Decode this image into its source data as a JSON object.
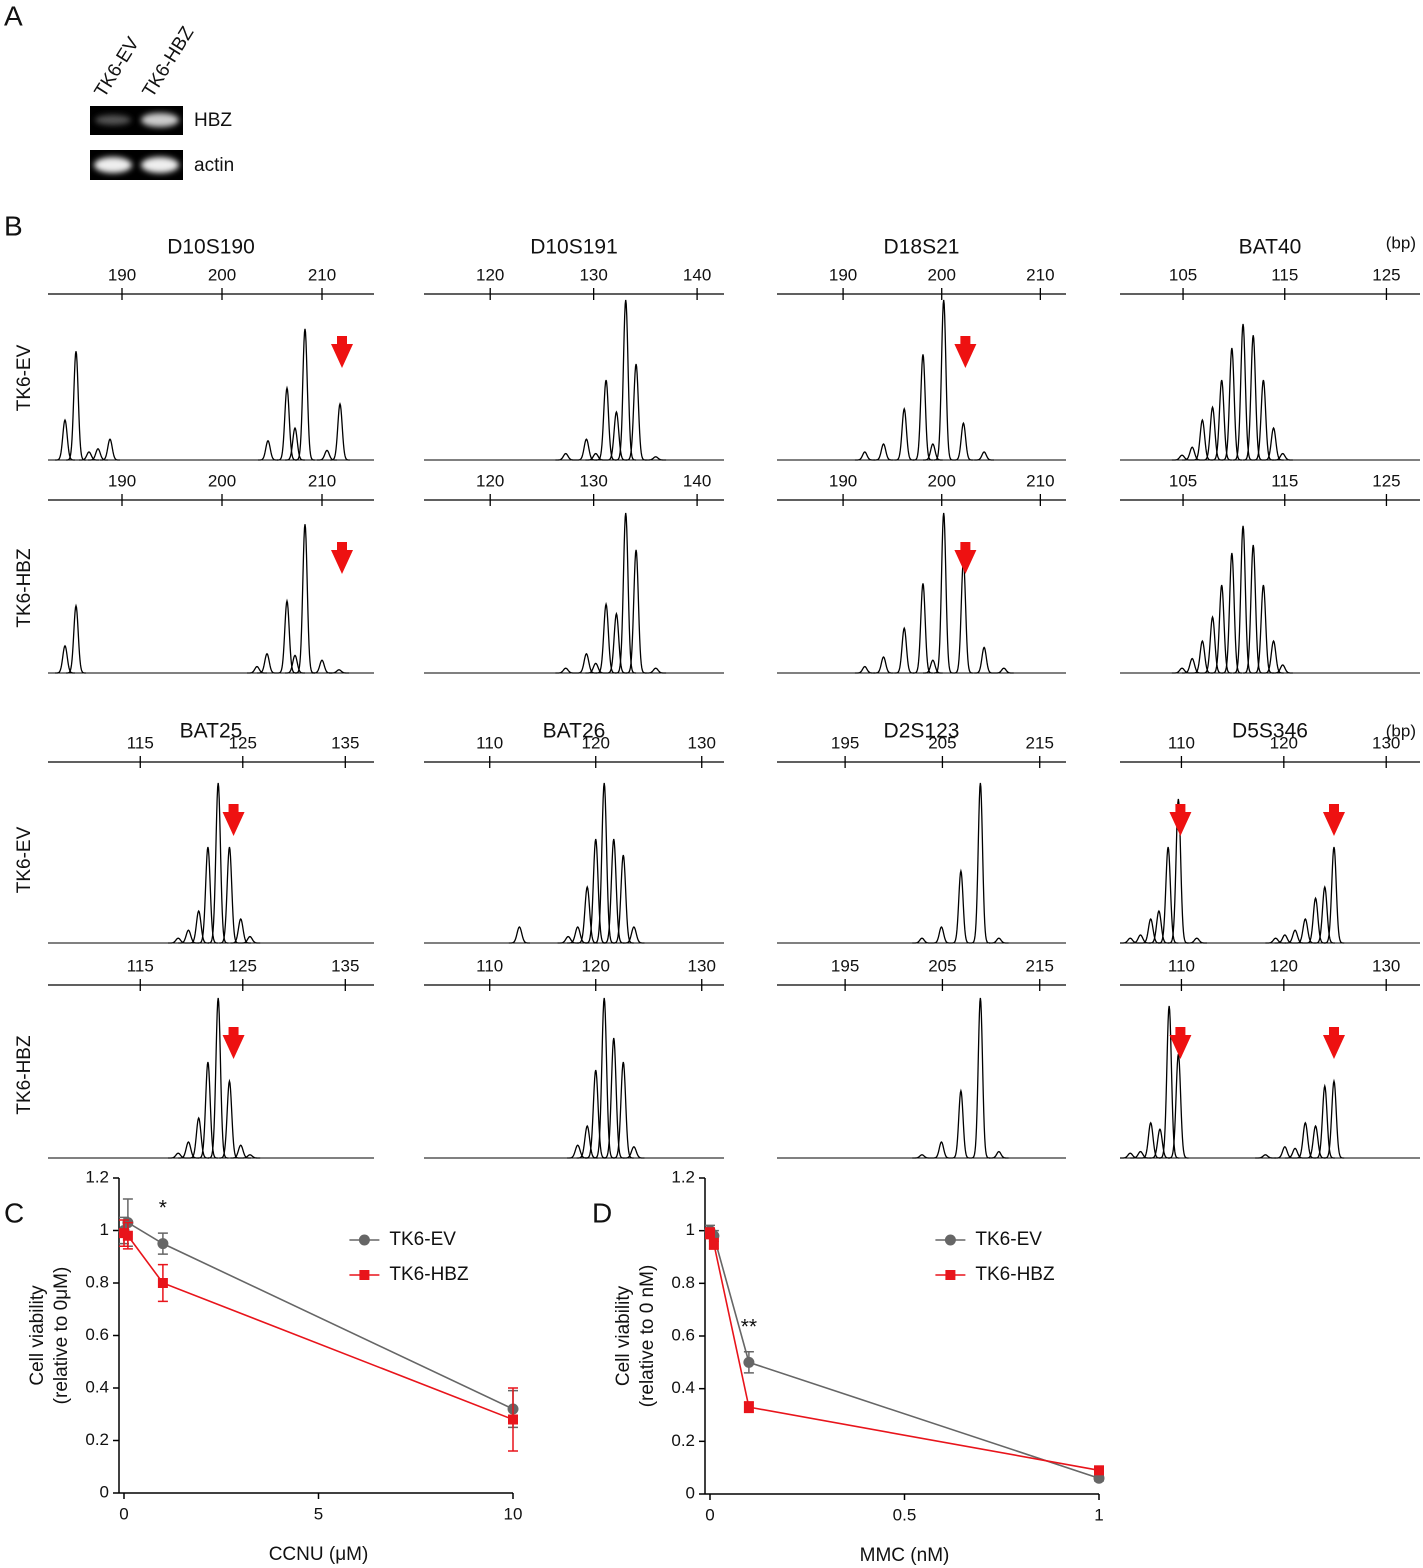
{
  "panel_labels": [
    "A",
    "B",
    "C",
    "D"
  ],
  "gel": {
    "lanes": [
      "TK6-EV",
      "TK6-HBZ"
    ],
    "bands": [
      "HBZ",
      "actin"
    ]
  },
  "fragment_analysis": {
    "unit": "(bp)",
    "rows": [
      "TK6-EV",
      "TK6-HBZ"
    ],
    "markers": [
      {
        "title": "D10S190",
        "xlim": [
          182.6,
          215.2
        ],
        "xticks": [
          190,
          200,
          210
        ],
        "traces": [
          {
            "peak_bp": [
              184.3,
              185.4,
              186.7,
              187.6,
              188.8,
              204.6,
              206.5,
              207.3,
              208.3,
              210.5,
              211.8
            ],
            "peak_height": [
              0.25,
              0.68,
              0.05,
              0.07,
              0.13,
              0.12,
              0.45,
              0.2,
              0.82,
              0.06,
              0.35
            ]
          },
          {
            "peak_bp": [
              184.3,
              185.4,
              203.5,
              204.5,
              206.5,
              207.3,
              208.3,
              210.0,
              211.7
            ],
            "peak_height": [
              0.17,
              0.42,
              0.04,
              0.12,
              0.45,
              0.11,
              0.93,
              0.08,
              0.02
            ]
          }
        ],
        "arrows": [
          [
            212.0
          ],
          [
            212.0
          ]
        ]
      },
      {
        "title": "D10S191",
        "xlim": [
          113.6,
          142.6
        ],
        "xticks": [
          120,
          130,
          140
        ],
        "traces": [
          {
            "peak_bp": [
              127.3,
              129.3,
              130.2,
              131.2,
              132.2,
              133.1,
              134.1,
              136.0
            ],
            "peak_height": [
              0.04,
              0.13,
              0.04,
              0.5,
              0.3,
              1.0,
              0.6,
              0.02
            ]
          },
          {
            "peak_bp": [
              127.3,
              129.3,
              130.2,
              131.2,
              132.2,
              133.1,
              134.1,
              136.0
            ],
            "peak_height": [
              0.03,
              0.12,
              0.06,
              0.43,
              0.37,
              1.0,
              0.77,
              0.03
            ]
          }
        ],
        "arrows": [
          [],
          []
        ]
      },
      {
        "title": "D18S21",
        "xlim": [
          183.3,
          212.6
        ],
        "xticks": [
          190,
          200,
          210
        ],
        "traces": [
          {
            "peak_bp": [
              192.2,
              194.1,
              196.2,
              198.1,
              199.1,
              200.2,
              202.2,
              204.3
            ],
            "peak_height": [
              0.05,
              0.1,
              0.32,
              0.66,
              0.1,
              1.0,
              0.23,
              0.05
            ]
          },
          {
            "peak_bp": [
              192.2,
              194.1,
              196.2,
              198.1,
              199.1,
              200.2,
              202.2,
              204.3,
              206.3
            ],
            "peak_height": [
              0.04,
              0.1,
              0.28,
              0.56,
              0.08,
              1.0,
              0.7,
              0.16,
              0.03
            ]
          }
        ],
        "arrows": [
          [
            202.4
          ],
          [
            202.4
          ]
        ]
      },
      {
        "title": "BAT40",
        "xlim": [
          98.8,
          128.3
        ],
        "xticks": [
          105,
          115,
          125
        ],
        "traces": [
          {
            "peak_bp": [
              104.9,
              105.9,
              106.9,
              107.9,
              108.8,
              109.8,
              110.9,
              111.9,
              112.9,
              113.9,
              114.8
            ],
            "peak_height": [
              0.03,
              0.08,
              0.25,
              0.33,
              0.5,
              0.7,
              0.85,
              0.78,
              0.5,
              0.2,
              0.04
            ]
          },
          {
            "peak_bp": [
              104.9,
              105.9,
              106.9,
              107.9,
              108.8,
              109.8,
              110.9,
              111.9,
              112.9,
              113.9,
              114.8
            ],
            "peak_height": [
              0.03,
              0.09,
              0.2,
              0.35,
              0.55,
              0.75,
              0.92,
              0.8,
              0.55,
              0.2,
              0.05
            ]
          }
        ],
        "arrows": [
          [],
          []
        ]
      },
      {
        "title": "BAT25",
        "xlim": [
          106.0,
          137.8
        ],
        "xticks": [
          115,
          125,
          135
        ],
        "traces": [
          {
            "peak_bp": [
              118.7,
              119.7,
              120.7,
              121.6,
              122.6,
              123.7,
              124.8,
              125.7
            ],
            "peak_height": [
              0.03,
              0.08,
              0.2,
              0.6,
              1.0,
              0.6,
              0.15,
              0.04
            ]
          },
          {
            "peak_bp": [
              118.7,
              119.7,
              120.7,
              121.6,
              122.6,
              123.7,
              124.8,
              125.7
            ],
            "peak_height": [
              0.03,
              0.1,
              0.25,
              0.6,
              1.0,
              0.48,
              0.08,
              0.02
            ]
          }
        ],
        "arrows": [
          [
            124.1
          ],
          [
            124.1
          ]
        ]
      },
      {
        "title": "BAT26",
        "xlim": [
          103.8,
          132.1
        ],
        "xticks": [
          110,
          120,
          130
        ],
        "traces": [
          {
            "peak_bp": [
              112.8,
              117.4,
              118.3,
              119.2,
              120.0,
              120.8,
              121.7,
              122.6,
              123.6
            ],
            "peak_height": [
              0.1,
              0.04,
              0.1,
              0.35,
              0.65,
              1.0,
              0.65,
              0.55,
              0.1
            ]
          },
          {
            "peak_bp": [
              118.3,
              119.2,
              120.0,
              120.8,
              121.7,
              122.6,
              123.6
            ],
            "peak_height": [
              0.08,
              0.2,
              0.55,
              1.0,
              0.75,
              0.6,
              0.07
            ]
          }
        ],
        "arrows": [
          [],
          []
        ]
      },
      {
        "title": "D2S123",
        "xlim": [
          188.0,
          217.7
        ],
        "xticks": [
          195,
          205,
          215
        ],
        "traces": [
          {
            "peak_bp": [
              202.9,
              204.9,
              206.9,
              208.9,
              210.8
            ],
            "peak_height": [
              0.03,
              0.1,
              0.45,
              1.0,
              0.03
            ]
          },
          {
            "peak_bp": [
              202.9,
              204.9,
              206.9,
              208.9,
              210.8
            ],
            "peak_height": [
              0.02,
              0.1,
              0.42,
              1.0,
              0.04
            ]
          }
        ],
        "arrows": [
          [],
          []
        ]
      },
      {
        "title": "D5S346",
        "xlim": [
          104.0,
          133.3
        ],
        "xticks": [
          110,
          120,
          130
        ],
        "traces": [
          {
            "peak_bp": [
              105.0,
              106.0,
              107.0,
              107.8,
              108.7,
              109.7,
              111.5,
              119.2,
              120.1,
              121.1,
              122.1,
              123.1,
              124.0,
              124.9
            ],
            "peak_height": [
              0.03,
              0.05,
              0.15,
              0.2,
              0.6,
              0.9,
              0.03,
              0.03,
              0.05,
              0.08,
              0.15,
              0.28,
              0.35,
              0.6
            ]
          },
          {
            "peak_bp": [
              105.0,
              106.0,
              107.0,
              107.9,
              108.8,
              109.7,
              118.2,
              120.1,
              121.1,
              122.1,
              123.1,
              124.0,
              124.9
            ],
            "peak_height": [
              0.03,
              0.04,
              0.22,
              0.18,
              0.95,
              0.65,
              0.02,
              0.07,
              0.06,
              0.22,
              0.2,
              0.45,
              0.48
            ]
          }
        ],
        "arrows": [
          [
            109.9,
            124.9
          ],
          [
            109.9,
            124.9
          ]
        ]
      }
    ]
  },
  "chart_data": [
    {
      "type": "line",
      "xlabel": "CCNU (μM)",
      "ylabel": [
        "Cell viability",
        "(relative to 0μM)"
      ],
      "x": [
        0,
        0.1,
        1,
        10
      ],
      "xlim": [
        0,
        10
      ],
      "xticks": [
        0,
        5,
        10
      ],
      "ylim": [
        0,
        1.2
      ],
      "yticks": [
        0,
        0.2,
        0.4,
        0.6,
        0.8,
        1,
        1.2
      ],
      "legend": "top-right",
      "series": [
        {
          "name": "TK6-EV",
          "color": "#666666",
          "marker": "circle",
          "values": [
            1.0,
            1.03,
            0.95,
            0.32
          ],
          "errors": [
            0.05,
            0.09,
            0.04,
            0.07
          ]
        },
        {
          "name": "TK6-HBZ",
          "color": "#e8141b",
          "marker": "square",
          "values": [
            0.99,
            0.98,
            0.8,
            0.28
          ],
          "errors": [
            0.05,
            0.05,
            0.07,
            0.12
          ]
        }
      ],
      "annotations": [
        {
          "text": "*",
          "x": 1
        }
      ]
    },
    {
      "type": "line",
      "xlabel": "MMC (nM)",
      "ylabel": [
        "Cell viability",
        "(relative to 0 nM)"
      ],
      "x": [
        0,
        0.01,
        0.1,
        1
      ],
      "xlim": [
        0,
        1
      ],
      "xticks": [
        0,
        0.5,
        1
      ],
      "ylim": [
        0,
        1.2
      ],
      "yticks": [
        0,
        0.2,
        0.4,
        0.6,
        0.8,
        1,
        1.2
      ],
      "legend": "top-right",
      "series": [
        {
          "name": "TK6-EV",
          "color": "#666666",
          "marker": "circle",
          "values": [
            1.0,
            0.98,
            0.5,
            0.06
          ],
          "errors": [
            0.02,
            0.02,
            0.04,
            0.01
          ]
        },
        {
          "name": "TK6-HBZ",
          "color": "#e8141b",
          "marker": "square",
          "values": [
            0.99,
            0.95,
            0.33,
            0.09
          ],
          "errors": [
            0.02,
            0.02,
            0.02,
            0.01
          ]
        }
      ],
      "annotations": [
        {
          "text": "**",
          "x": 0.1
        }
      ]
    }
  ]
}
